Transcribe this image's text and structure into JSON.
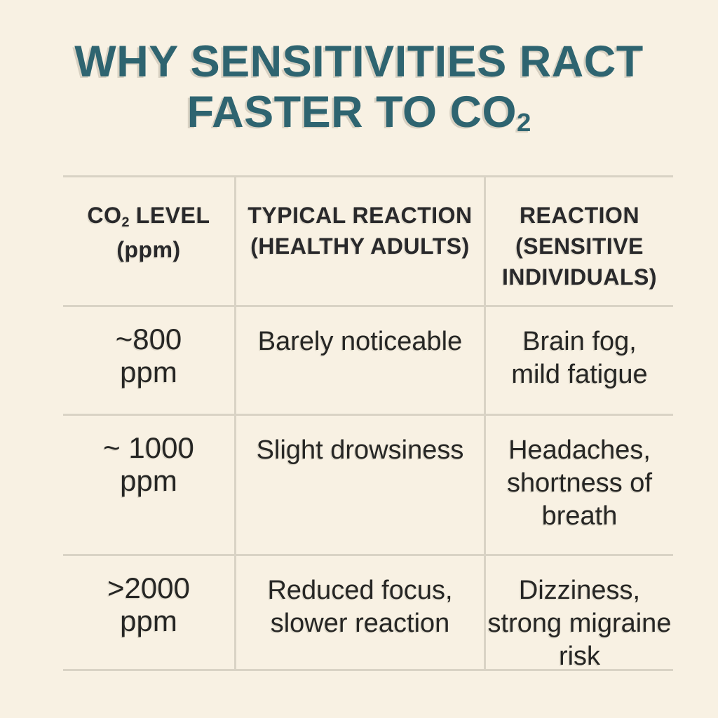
{
  "page": {
    "background_color": "#f8f1e3",
    "accent_color": "#2e6470",
    "grid_line_color": "#d9d3c5",
    "text_color": "#262624"
  },
  "title": {
    "line1": "WHY SENSITIVITIES RACT",
    "line2_pre": "FASTER TO CO",
    "line2_sub": "2"
  },
  "table": {
    "headers": {
      "co2_level": {
        "pre": "CO",
        "sub": "2",
        "post": " LEVEL",
        "line2": "(ppm)"
      },
      "typical_reaction": "TYPICAL REACTION\n(HEALTHY ADULTS)",
      "sensitive_reaction": "REACTION\n(SENSITIVE\nINDIVIDUALS)"
    },
    "rows": [
      {
        "level": "~800\nppm",
        "healthy": "Barely noticeable",
        "sensitive": "Brain fog,\nmild fatigue"
      },
      {
        "level": "~ 1000\nppm",
        "healthy": "Slight drowsiness",
        "sensitive": "Headaches,\nshortness of\nbreath"
      },
      {
        "level": ">2000\nppm",
        "healthy": "Reduced focus,\nslower reaction",
        "sensitive": "Dizziness,\nstrong migraine\nrisk"
      }
    ]
  },
  "chart_data": {
    "type": "table",
    "title": "WHY SENSITIVITIES RACT FASTER TO CO2",
    "columns": [
      "CO2 LEVEL (ppm)",
      "TYPICAL REACTION (HEALTHY ADULTS)",
      "REACTION (SENSITIVE INDIVIDUALS)"
    ],
    "rows": [
      [
        "~800 ppm",
        "Barely noticeable",
        "Brain fog, mild fatigue"
      ],
      [
        "~1000 ppm",
        "Slight drowsiness",
        "Headaches, shortness of breath"
      ],
      [
        ">2000 ppm",
        "Reduced focus, slower reaction",
        "Dizziness, strong migraine risk"
      ]
    ]
  }
}
